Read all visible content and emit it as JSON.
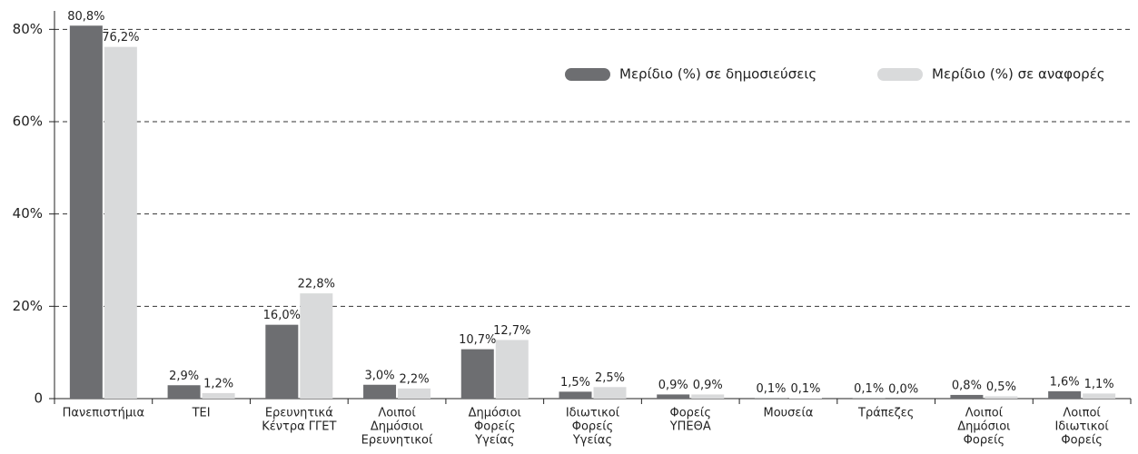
{
  "chart_data": {
    "type": "bar",
    "categories": [
      [
        "Πανεπιστήμια"
      ],
      [
        "ΤΕΙ"
      ],
      [
        "Ερευνητικά",
        "Κέντρα ΓΓΕΤ"
      ],
      [
        "Λοιποί",
        "Δημόσιοι",
        "Ερευνητικοί"
      ],
      [
        "Δημόσιοι",
        "Φορείς",
        "Υγείας"
      ],
      [
        "Ιδιωτικοί",
        "Φορείς",
        "Υγείας"
      ],
      [
        "Φορείς",
        "ΥΠΕΘΑ"
      ],
      [
        "Μουσεία"
      ],
      [
        "Τράπεζες"
      ],
      [
        "Λοιποί",
        "Δημόσιοι",
        "Φορείς"
      ],
      [
        "Λοιποί",
        "Ιδιωτικοί",
        "Φορείς"
      ]
    ],
    "series": [
      {
        "name": "Μερίδιο (%) σε δημοσιεύσεις",
        "color": "#6d6e71",
        "values": [
          80.8,
          2.9,
          16.0,
          3.0,
          10.7,
          1.5,
          0.9,
          0.1,
          0.1,
          0.8,
          1.6
        ],
        "value_labels": [
          "80,8%",
          "2,9%",
          "16,0%",
          "3,0%",
          "10,7%",
          "1,5%",
          "0,9%",
          "0,1%",
          "0,1%",
          "0,8%",
          "1,6%"
        ]
      },
      {
        "name": "Μερίδιο (%) σε αναφορές",
        "color": "#d9dadb",
        "values": [
          76.2,
          1.2,
          22.8,
          2.2,
          12.7,
          2.5,
          0.9,
          0.1,
          0.0,
          0.5,
          1.1
        ],
        "value_labels": [
          "76,2%",
          "1,2%",
          "22,8%",
          "2,2%",
          "12,7%",
          "2,5%",
          "0,9%",
          "0,1%",
          "0,0%",
          "0,5%",
          "1,1%"
        ]
      }
    ],
    "ylim": [
      0,
      84
    ],
    "yticks": [
      0,
      {
        "value": 20,
        "label": "20%"
      },
      {
        "value": 40,
        "label": "40%"
      },
      {
        "value": 60,
        "label": "60%"
      },
      {
        "value": 80,
        "label": "80%"
      }
    ],
    "grid": true,
    "legend": "top-right"
  }
}
